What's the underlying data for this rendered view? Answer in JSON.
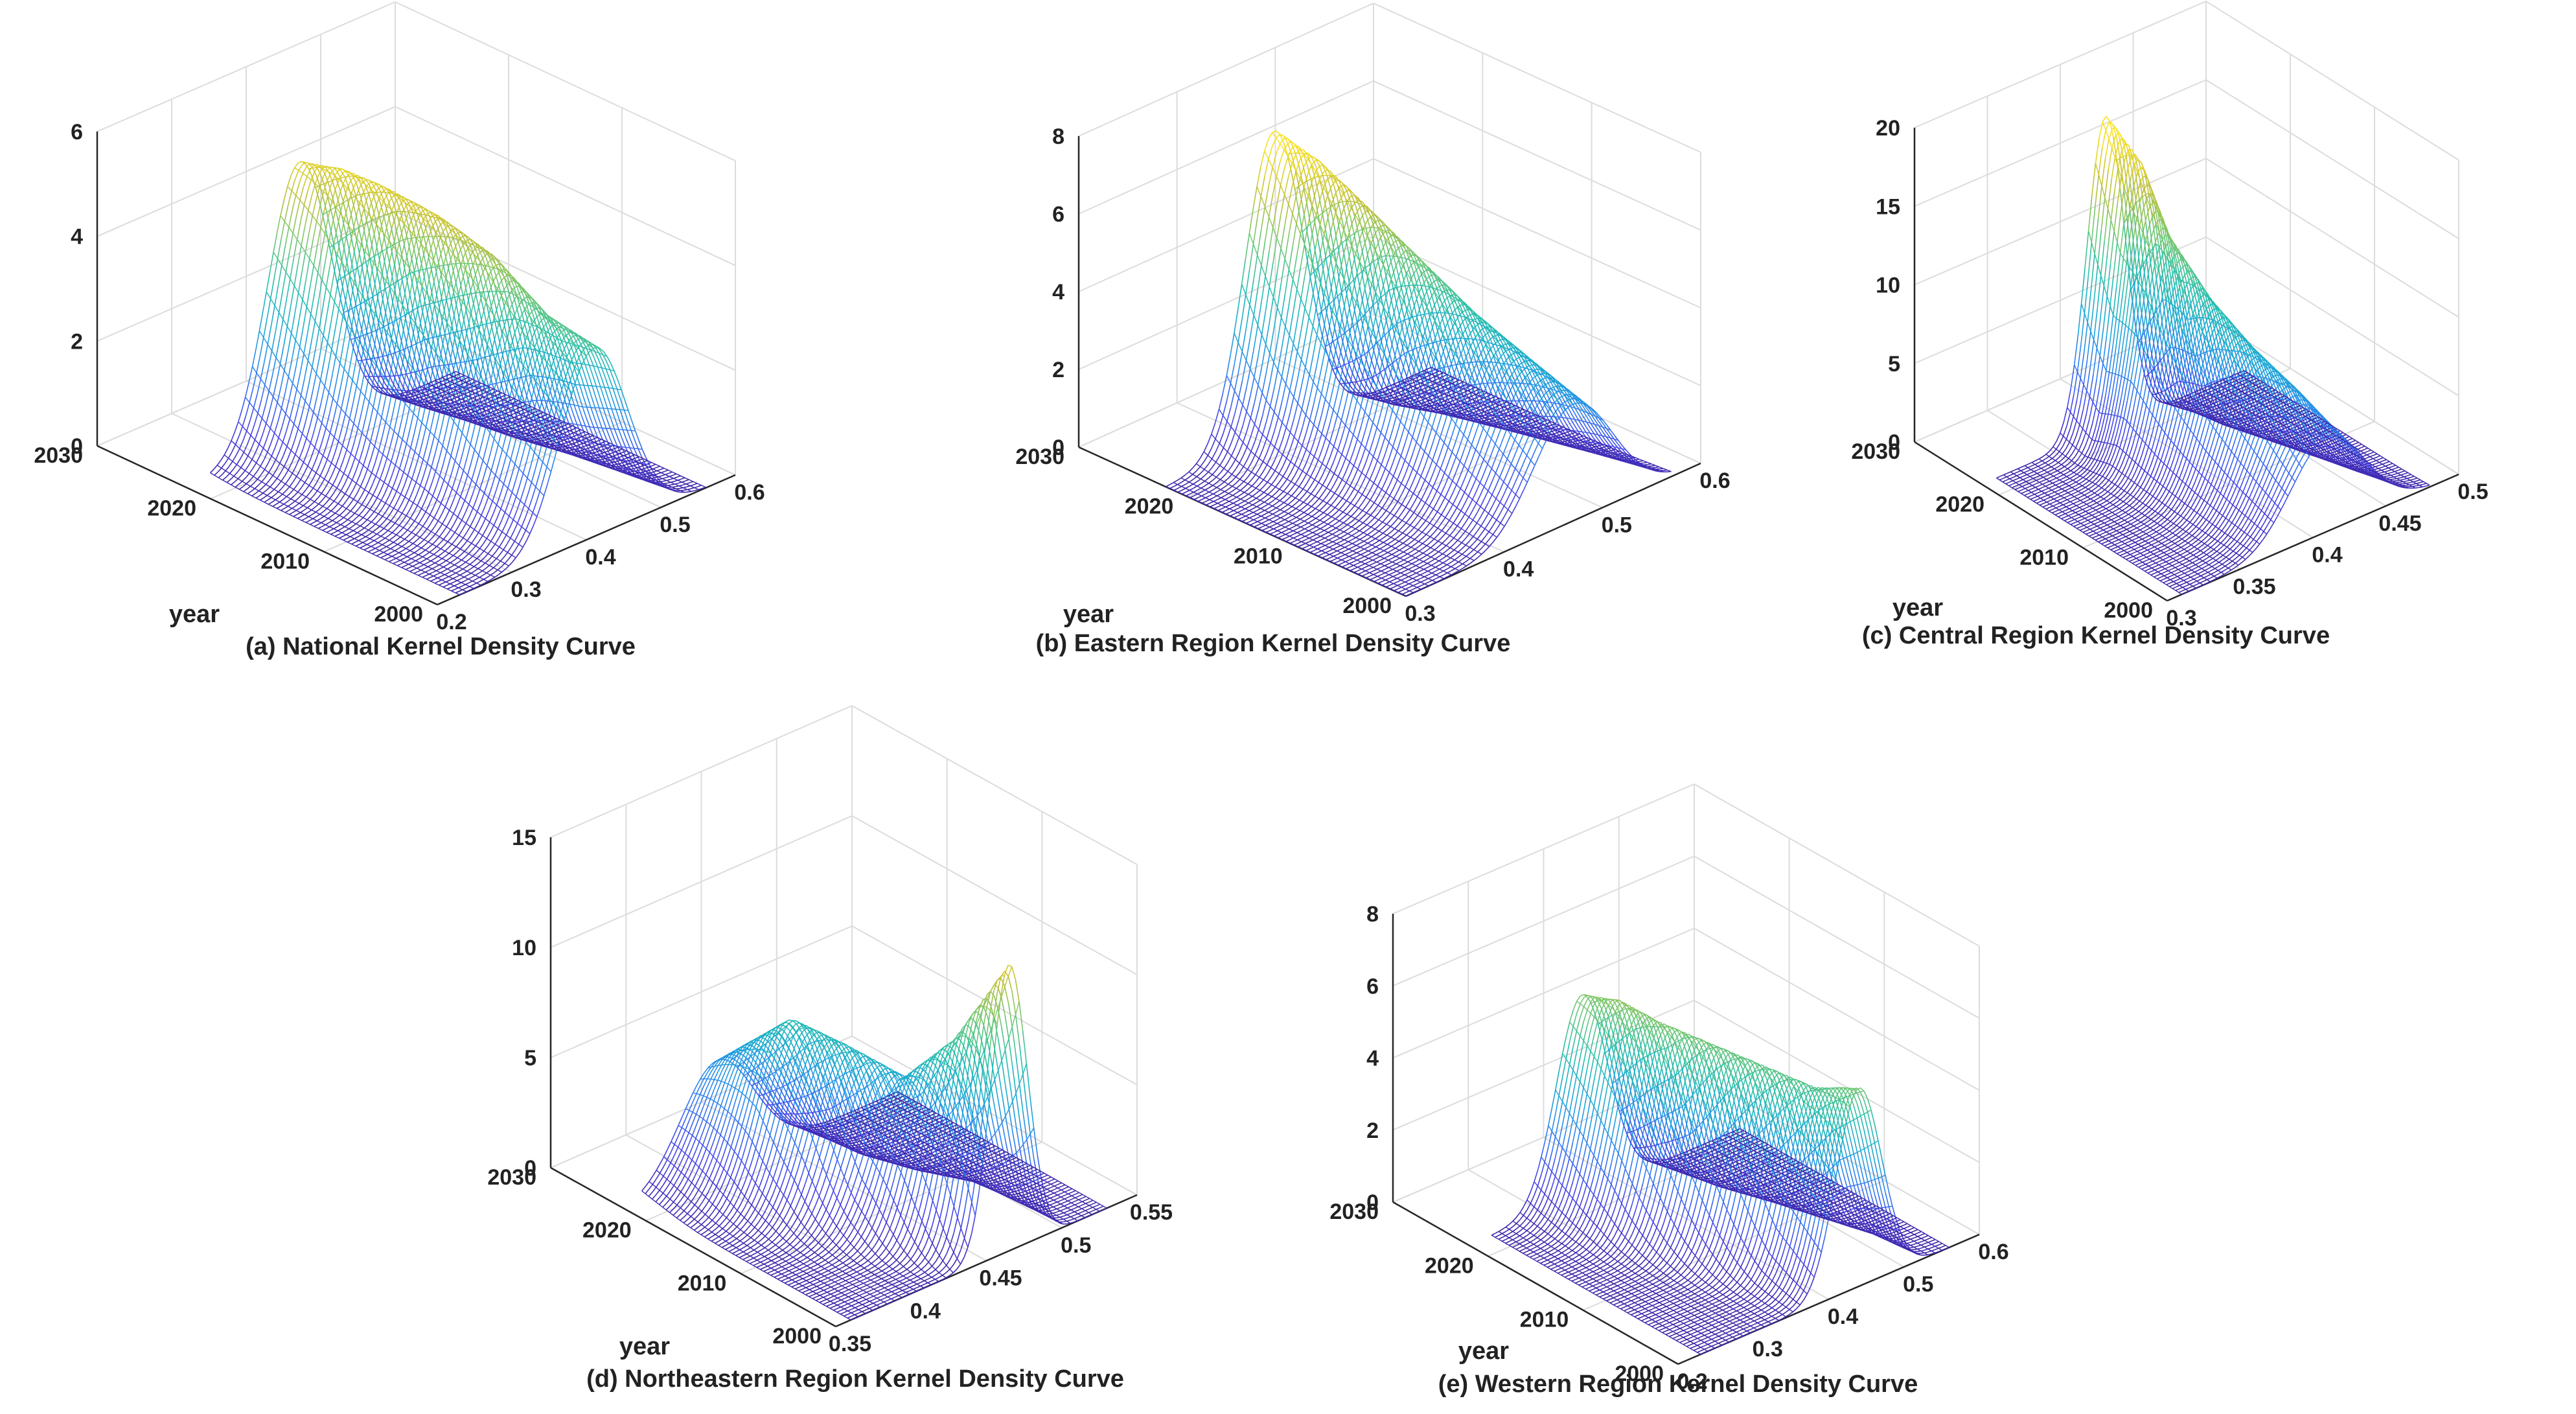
{
  "chart_data": [
    {
      "id": "a",
      "type": "surface",
      "title": "(a)  National Kernel Density Curve",
      "xlabel": "",
      "ylabel": "year",
      "zlabel": "",
      "x_ticks": [
        "0.2",
        "0.3",
        "0.4",
        "0.5",
        "0.6"
      ],
      "x_tick_values": [
        0.2,
        0.3,
        0.4,
        0.5,
        0.6
      ],
      "xlim": [
        0.2,
        0.6
      ],
      "y_ticks": [
        "2000",
        "2010",
        "2020",
        "2030"
      ],
      "y_tick_values": [
        2000,
        2010,
        2020,
        2030
      ],
      "ylim": [
        2000,
        2030
      ],
      "z_ticks": [
        "0",
        "2",
        "4",
        "6"
      ],
      "z_tick_values": [
        0,
        2,
        4,
        6
      ],
      "zlim": [
        0,
        6
      ],
      "data_x_range": [
        0.23,
        0.56
      ],
      "data_y_range": [
        2000,
        2022
      ],
      "peaks": [
        {
          "year": 2000,
          "x": 0.41,
          "density": 3.6,
          "sigma": 0.045
        },
        {
          "year": 2004,
          "x": 0.4,
          "density": 3.9,
          "sigma": 0.045
        },
        {
          "year": 2008,
          "x": 0.39,
          "density": 4.7,
          "sigma": 0.044
        },
        {
          "year": 2012,
          "x": 0.38,
          "density": 5.1,
          "sigma": 0.042
        },
        {
          "year": 2016,
          "x": 0.37,
          "density": 5.3,
          "sigma": 0.042
        },
        {
          "year": 2019,
          "x": 0.36,
          "density": 5.4,
          "sigma": 0.042
        },
        {
          "year": 2022,
          "x": 0.35,
          "density": 5.3,
          "sigma": 0.043
        }
      ]
    },
    {
      "id": "b",
      "type": "surface",
      "title": "(b)  Eastern Region Kernel Density Curve",
      "xlabel": "",
      "ylabel": "year",
      "zlabel": "",
      "x_ticks": [
        "0.3",
        "0.4",
        "0.5",
        "0.6"
      ],
      "x_tick_values": [
        0.3,
        0.4,
        0.5,
        0.6
      ],
      "xlim": [
        0.3,
        0.6
      ],
      "y_ticks": [
        "2000",
        "2010",
        "2020",
        "2030"
      ],
      "y_tick_values": [
        2000,
        2010,
        2020,
        2030
      ],
      "ylim": [
        2000,
        2030
      ],
      "z_ticks": [
        "0",
        "2",
        "4",
        "6",
        "8"
      ],
      "z_tick_values": [
        0,
        2,
        4,
        6,
        8
      ],
      "zlim": [
        0,
        8
      ],
      "data_x_range": [
        0.3,
        0.57
      ],
      "data_y_range": [
        2000,
        2022
      ],
      "peaks": [
        {
          "year": 2000,
          "x": 0.47,
          "density": 3.0,
          "sigma": 0.04
        },
        {
          "year": 2004,
          "x": 0.46,
          "density": 3.8,
          "sigma": 0.038
        },
        {
          "year": 2008,
          "x": 0.45,
          "density": 4.6,
          "sigma": 0.036
        },
        {
          "year": 2012,
          "x": 0.44,
          "density": 5.6,
          "sigma": 0.034
        },
        {
          "year": 2016,
          "x": 0.43,
          "density": 6.6,
          "sigma": 0.032
        },
        {
          "year": 2019,
          "x": 0.42,
          "density": 7.4,
          "sigma": 0.03
        },
        {
          "year": 2022,
          "x": 0.41,
          "density": 7.9,
          "sigma": 0.03
        }
      ]
    },
    {
      "id": "c",
      "type": "surface",
      "title": "(c)  Central Region Kernel Density Curve",
      "xlabel": "",
      "ylabel": "year",
      "zlabel": "",
      "x_ticks": [
        "0.3",
        "0.35",
        "0.4",
        "0.45",
        "0.5"
      ],
      "x_tick_values": [
        0.3,
        0.35,
        0.4,
        0.45,
        0.5
      ],
      "xlim": [
        0.3,
        0.5
      ],
      "y_ticks": [
        "2000",
        "2010",
        "2020",
        "2030"
      ],
      "y_tick_values": [
        2000,
        2010,
        2020,
        2030
      ],
      "ylim": [
        2000,
        2030
      ],
      "z_ticks": [
        "0",
        "5",
        "10",
        "15",
        "20"
      ],
      "z_tick_values": [
        0,
        5,
        10,
        15,
        20
      ],
      "zlim": [
        0,
        20
      ],
      "data_x_range": [
        0.31,
        0.48
      ],
      "data_y_range": [
        2000,
        2022
      ],
      "peaks": [
        {
          "year": 2000,
          "x": 0.41,
          "density": 6.0,
          "sigma": 0.025
        },
        {
          "year": 2004,
          "x": 0.405,
          "density": 8.0,
          "sigma": 0.022
        },
        {
          "year": 2008,
          "x": 0.4,
          "density": 9.5,
          "sigma": 0.02
        },
        {
          "year": 2012,
          "x": 0.395,
          "density": 11.5,
          "sigma": 0.018
        },
        {
          "year": 2016,
          "x": 0.39,
          "density": 14.5,
          "sigma": 0.016
        },
        {
          "year": 2019,
          "x": 0.39,
          "density": 18.0,
          "sigma": 0.014
        },
        {
          "year": 2022,
          "x": 0.385,
          "density": 20.0,
          "sigma": 0.013
        }
      ]
    },
    {
      "id": "d",
      "type": "surface",
      "title": "(d)  Northeastern Region Kernel Density Curve",
      "xlabel": "",
      "ylabel": "year",
      "zlabel": "",
      "x_ticks": [
        "0.35",
        "0.4",
        "0.45",
        "0.5",
        "0.55"
      ],
      "x_tick_values": [
        0.35,
        0.4,
        0.45,
        0.5,
        0.55
      ],
      "xlim": [
        0.35,
        0.55
      ],
      "y_ticks": [
        "2000",
        "2010",
        "2020",
        "2030"
      ],
      "y_tick_values": [
        2000,
        2010,
        2020,
        2030
      ],
      "ylim": [
        2000,
        2030
      ],
      "z_ticks": [
        "0",
        "5",
        "10",
        "15"
      ],
      "z_tick_values": [
        0,
        5,
        10,
        15
      ],
      "zlim": [
        0,
        15
      ],
      "data_x_range": [
        0.36,
        0.53
      ],
      "data_y_range": [
        2000,
        2022
      ],
      "peaks": [
        {
          "year": 2000,
          "x": 0.465,
          "density": 13.0,
          "sigma": 0.012
        },
        {
          "year": 2004,
          "x": 0.455,
          "density": 9.0,
          "sigma": 0.016
        },
        {
          "year": 2008,
          "x": 0.445,
          "density": 6.5,
          "sigma": 0.02
        },
        {
          "year": 2012,
          "x": 0.43,
          "density": 7.5,
          "sigma": 0.02
        },
        {
          "year": 2016,
          "x": 0.42,
          "density": 8.0,
          "sigma": 0.02
        },
        {
          "year": 2019,
          "x": 0.415,
          "density": 6.5,
          "sigma": 0.022
        },
        {
          "year": 2022,
          "x": 0.41,
          "density": 5.0,
          "sigma": 0.024
        }
      ]
    },
    {
      "id": "e",
      "type": "surface",
      "title": "(e)  Western Region Kernel Density Curve",
      "xlabel": "",
      "ylabel": "year",
      "zlabel": "",
      "x_ticks": [
        "0.2",
        "0.3",
        "0.4",
        "0.5",
        "0.6"
      ],
      "x_tick_values": [
        0.2,
        0.3,
        0.4,
        0.5,
        0.6
      ],
      "xlim": [
        0.2,
        0.6
      ],
      "y_ticks": [
        "2000",
        "2010",
        "2020",
        "2030"
      ],
      "y_tick_values": [
        2000,
        2010,
        2020,
        2030
      ],
      "ylim": [
        2000,
        2030
      ],
      "z_ticks": [
        "0",
        "2",
        "4",
        "6",
        "8"
      ],
      "z_tick_values": [
        0,
        2,
        4,
        6,
        8
      ],
      "zlim": [
        0,
        8
      ],
      "data_x_range": [
        0.23,
        0.56
      ],
      "data_y_range": [
        2000,
        2022
      ],
      "peaks": [
        {
          "year": 2000,
          "x": 0.44,
          "density": 5.5,
          "sigma": 0.03
        },
        {
          "year": 2004,
          "x": 0.43,
          "density": 5.0,
          "sigma": 0.032
        },
        {
          "year": 2008,
          "x": 0.41,
          "density": 5.2,
          "sigma": 0.033
        },
        {
          "year": 2012,
          "x": 0.39,
          "density": 5.4,
          "sigma": 0.034
        },
        {
          "year": 2016,
          "x": 0.37,
          "density": 5.6,
          "sigma": 0.034
        },
        {
          "year": 2019,
          "x": 0.36,
          "density": 5.8,
          "sigma": 0.034
        },
        {
          "year": 2022,
          "x": 0.35,
          "density": 5.6,
          "sigma": 0.034
        }
      ]
    }
  ],
  "colors": {
    "colormap": [
      "#3e26a8",
      "#4743e8",
      "#2f7ff0",
      "#1ca7d6",
      "#26bfae",
      "#73c772",
      "#c4c135",
      "#f9e221"
    ],
    "grid": "#dcdcdc",
    "axis": "#262626",
    "text": "#222222"
  }
}
